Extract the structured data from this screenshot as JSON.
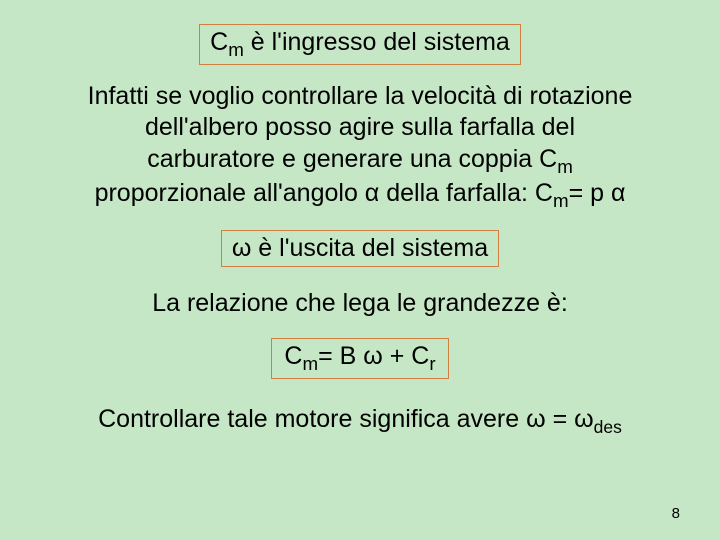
{
  "background_color": "#c6e7c6",
  "box_border_color": "#d08040",
  "font_family": "Arial",
  "font_size_body": 25,
  "box1": {
    "prefix": "C",
    "sub": "m",
    "rest": "  è l'ingresso del sistema"
  },
  "para1_l1": "Infatti se voglio controllare la velocità di rotazione",
  "para1_l2": "dell'albero posso agire sulla farfalla del",
  "para1_l3_a": "carburatore e generare una coppia C",
  "para1_l3_sub": "m",
  "para1_l4_a": "proporzionale all'angolo α della farfalla: C",
  "para1_l4_sub": "m",
  "para1_l4_b": "= p α",
  "box2": "ω è l'uscita del sistema",
  "relation": "La relazione che lega le grandezze è:",
  "formula": {
    "a": "C",
    "sub1": "m",
    "b": "= B ω + C",
    "sub2": "r"
  },
  "control": {
    "a": "Controllare tale motore significa avere ω = ω",
    "sub": "des"
  },
  "page_number": "8"
}
